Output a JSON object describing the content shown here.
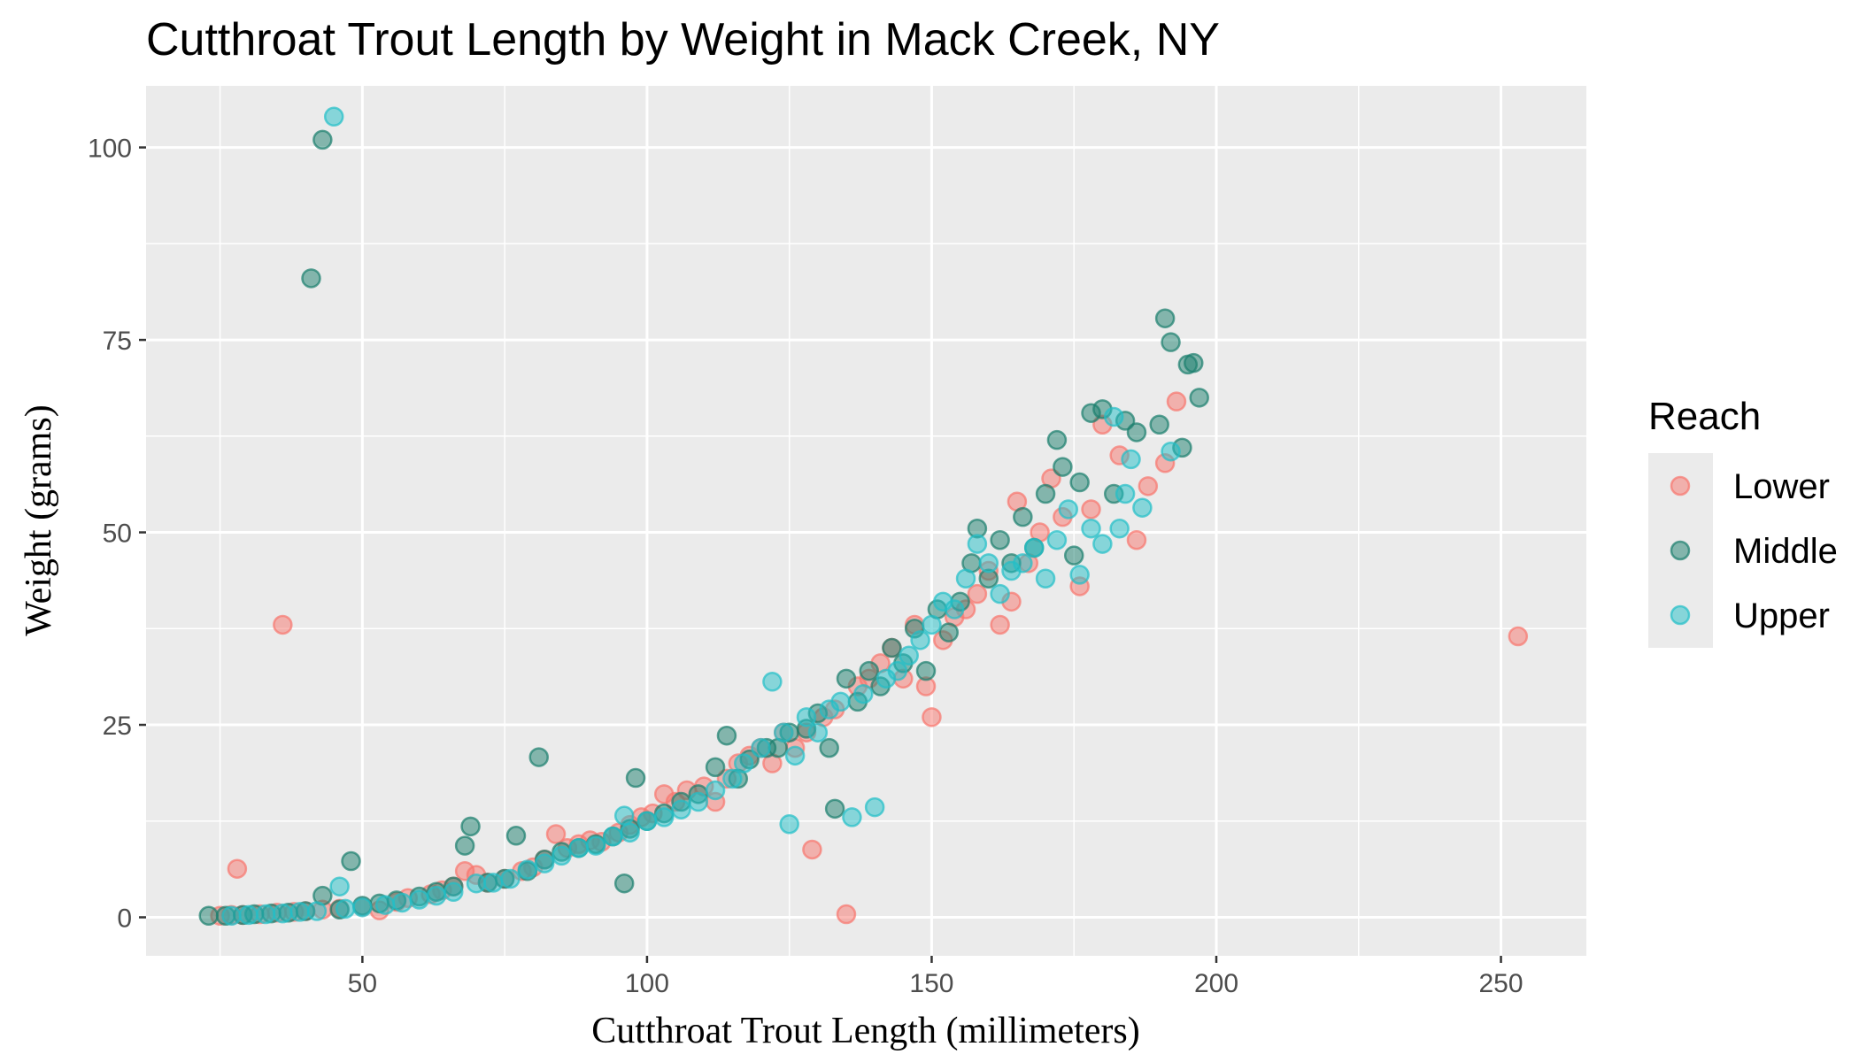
{
  "chart_data": {
    "type": "scatter",
    "title": "Cutthroat Trout Length by Weight in Mack Creek, NY",
    "xlabel": "Cutthroat Trout Length (millimeters)",
    "ylabel": "Weight (grams)",
    "xlim": [
      12,
      265
    ],
    "ylim": [
      -5,
      108
    ],
    "x_ticks": [
      50,
      100,
      150,
      200,
      250
    ],
    "x_tick_labels": [
      "50",
      "100",
      "150",
      "200",
      "250"
    ],
    "y_ticks": [
      0,
      25,
      50,
      75,
      100
    ],
    "y_tick_labels": [
      "0",
      "25",
      "50",
      "75",
      "100"
    ],
    "grid": true,
    "legend": {
      "title": "Reach",
      "position": "right"
    },
    "series": [
      {
        "name": "Lower",
        "color": "#F8766D",
        "points": [
          [
            25,
            0.2
          ],
          [
            27,
            0.3
          ],
          [
            28,
            6.3
          ],
          [
            29,
            0.3
          ],
          [
            32,
            0.4
          ],
          [
            35,
            0.6
          ],
          [
            36,
            38
          ],
          [
            38,
            0.7
          ],
          [
            40,
            0.8
          ],
          [
            43,
            1
          ],
          [
            46,
            1.1
          ],
          [
            50,
            1.4
          ],
          [
            53,
            0.9
          ],
          [
            56,
            2
          ],
          [
            58,
            2.5
          ],
          [
            62,
            3
          ],
          [
            64,
            3.5
          ],
          [
            66,
            4
          ],
          [
            68,
            6
          ],
          [
            70,
            5.5
          ],
          [
            72,
            4.5
          ],
          [
            75,
            5
          ],
          [
            78,
            6
          ],
          [
            80,
            6.5
          ],
          [
            82,
            7.5
          ],
          [
            84,
            10.8
          ],
          [
            86,
            9
          ],
          [
            88,
            9.5
          ],
          [
            90,
            10
          ],
          [
            92,
            9.8
          ],
          [
            95,
            11
          ],
          [
            97,
            12
          ],
          [
            99,
            13
          ],
          [
            101,
            13.5
          ],
          [
            103,
            16
          ],
          [
            105,
            15
          ],
          [
            107,
            16.5
          ],
          [
            110,
            17
          ],
          [
            112,
            15
          ],
          [
            114,
            18
          ],
          [
            116,
            20
          ],
          [
            118,
            21
          ],
          [
            120,
            22
          ],
          [
            122,
            20
          ],
          [
            124,
            24
          ],
          [
            126,
            22
          ],
          [
            128,
            24
          ],
          [
            129,
            8.8
          ],
          [
            131,
            26
          ],
          [
            133,
            27
          ],
          [
            135,
            0.4
          ],
          [
            137,
            30
          ],
          [
            139,
            31
          ],
          [
            141,
            33
          ],
          [
            143,
            35
          ],
          [
            145,
            31
          ],
          [
            147,
            38
          ],
          [
            149,
            30
          ],
          [
            150,
            26
          ],
          [
            152,
            36
          ],
          [
            154,
            39
          ],
          [
            156,
            40
          ],
          [
            158,
            42
          ],
          [
            160,
            45
          ],
          [
            162,
            38
          ],
          [
            164,
            41
          ],
          [
            165,
            54
          ],
          [
            167,
            46
          ],
          [
            169,
            50
          ],
          [
            171,
            57
          ],
          [
            173,
            52
          ],
          [
            176,
            43
          ],
          [
            178,
            53
          ],
          [
            180,
            64
          ],
          [
            183,
            60
          ],
          [
            186,
            49
          ],
          [
            188,
            56
          ],
          [
            191,
            59
          ],
          [
            193,
            67
          ],
          [
            253,
            36.5
          ]
        ]
      },
      {
        "name": "Middle",
        "color": "#1B7F6E",
        "points": [
          [
            23,
            0.2
          ],
          [
            26,
            0.2
          ],
          [
            29,
            0.3
          ],
          [
            31,
            0.4
          ],
          [
            34,
            0.5
          ],
          [
            37,
            0.6
          ],
          [
            40,
            0.8
          ],
          [
            41,
            83
          ],
          [
            43,
            101
          ],
          [
            43,
            2.8
          ],
          [
            46,
            1
          ],
          [
            48,
            7.3
          ],
          [
            50,
            1.5
          ],
          [
            53,
            1.8
          ],
          [
            56,
            2.2
          ],
          [
            60,
            2.7
          ],
          [
            63,
            3.3
          ],
          [
            66,
            4
          ],
          [
            68,
            9.3
          ],
          [
            69,
            11.8
          ],
          [
            72,
            4.5
          ],
          [
            75,
            5
          ],
          [
            77,
            10.6
          ],
          [
            79,
            6
          ],
          [
            81,
            20.8
          ],
          [
            82,
            7.5
          ],
          [
            85,
            8.5
          ],
          [
            88,
            9
          ],
          [
            91,
            9.5
          ],
          [
            94,
            10.5
          ],
          [
            96,
            4.4
          ],
          [
            97,
            11.5
          ],
          [
            98,
            18.1
          ],
          [
            100,
            12.5
          ],
          [
            103,
            13.5
          ],
          [
            106,
            15
          ],
          [
            109,
            16
          ],
          [
            112,
            19.5
          ],
          [
            114,
            23.6
          ],
          [
            116,
            18
          ],
          [
            118,
            20.5
          ],
          [
            121,
            22
          ],
          [
            123,
            22
          ],
          [
            125,
            24
          ],
          [
            128,
            24.5
          ],
          [
            130,
            26.5
          ],
          [
            132,
            22
          ],
          [
            133,
            14.1
          ],
          [
            135,
            31
          ],
          [
            137,
            28
          ],
          [
            139,
            32
          ],
          [
            141,
            30
          ],
          [
            143,
            35
          ],
          [
            145,
            33
          ],
          [
            147,
            37.5
          ],
          [
            149,
            32
          ],
          [
            151,
            40
          ],
          [
            153,
            37
          ],
          [
            155,
            41
          ],
          [
            157,
            46
          ],
          [
            158,
            50.5
          ],
          [
            160,
            44
          ],
          [
            162,
            49
          ],
          [
            164,
            46
          ],
          [
            166,
            52
          ],
          [
            168,
            48
          ],
          [
            170,
            55
          ],
          [
            172,
            62
          ],
          [
            173,
            58.5
          ],
          [
            175,
            47
          ],
          [
            176,
            56.5
          ],
          [
            178,
            65.5
          ],
          [
            180,
            66
          ],
          [
            182,
            55
          ],
          [
            184,
            64.5
          ],
          [
            186,
            63
          ],
          [
            190,
            64
          ],
          [
            191,
            77.8
          ],
          [
            192,
            74.7
          ],
          [
            194,
            61
          ],
          [
            195,
            71.8
          ],
          [
            196,
            72
          ],
          [
            197,
            67.5
          ]
        ]
      },
      {
        "name": "Upper",
        "color": "#22BFC7",
        "points": [
          [
            27,
            0.2
          ],
          [
            30,
            0.3
          ],
          [
            33,
            0.4
          ],
          [
            36,
            0.5
          ],
          [
            39,
            0.7
          ],
          [
            42,
            0.8
          ],
          [
            45,
            104
          ],
          [
            46,
            4
          ],
          [
            47,
            1.1
          ],
          [
            50,
            1.3
          ],
          [
            54,
            1.6
          ],
          [
            57,
            1.9
          ],
          [
            60,
            2.3
          ],
          [
            63,
            2.8
          ],
          [
            66,
            3.3
          ],
          [
            70,
            4.4
          ],
          [
            73,
            4.5
          ],
          [
            76,
            5
          ],
          [
            79,
            6.2
          ],
          [
            82,
            7
          ],
          [
            85,
            8
          ],
          [
            88,
            9
          ],
          [
            91,
            9.3
          ],
          [
            94,
            10.5
          ],
          [
            96,
            13.2
          ],
          [
            97,
            11
          ],
          [
            100,
            12.5
          ],
          [
            103,
            13
          ],
          [
            106,
            14
          ],
          [
            109,
            15
          ],
          [
            112,
            16.5
          ],
          [
            115,
            18
          ],
          [
            117,
            20
          ],
          [
            120,
            22
          ],
          [
            122,
            30.6
          ],
          [
            124,
            24
          ],
          [
            125,
            12.1
          ],
          [
            126,
            21
          ],
          [
            128,
            26
          ],
          [
            130,
            24
          ],
          [
            132,
            27
          ],
          [
            134,
            28
          ],
          [
            136,
            13
          ],
          [
            138,
            29
          ],
          [
            140,
            14.3
          ],
          [
            142,
            31
          ],
          [
            144,
            32
          ],
          [
            146,
            34
          ],
          [
            148,
            36
          ],
          [
            150,
            38
          ],
          [
            152,
            41
          ],
          [
            154,
            40
          ],
          [
            156,
            44
          ],
          [
            158,
            48.5
          ],
          [
            160,
            46
          ],
          [
            162,
            42
          ],
          [
            164,
            45
          ],
          [
            166,
            46
          ],
          [
            168,
            48
          ],
          [
            170,
            44
          ],
          [
            172,
            49
          ],
          [
            174,
            53
          ],
          [
            176,
            44.5
          ],
          [
            178,
            50.5
          ],
          [
            180,
            48.5
          ],
          [
            182,
            65
          ],
          [
            183,
            50.5
          ],
          [
            184,
            55
          ],
          [
            185,
            59.5
          ],
          [
            187,
            53.2
          ],
          [
            192,
            60.5
          ]
        ]
      }
    ]
  }
}
